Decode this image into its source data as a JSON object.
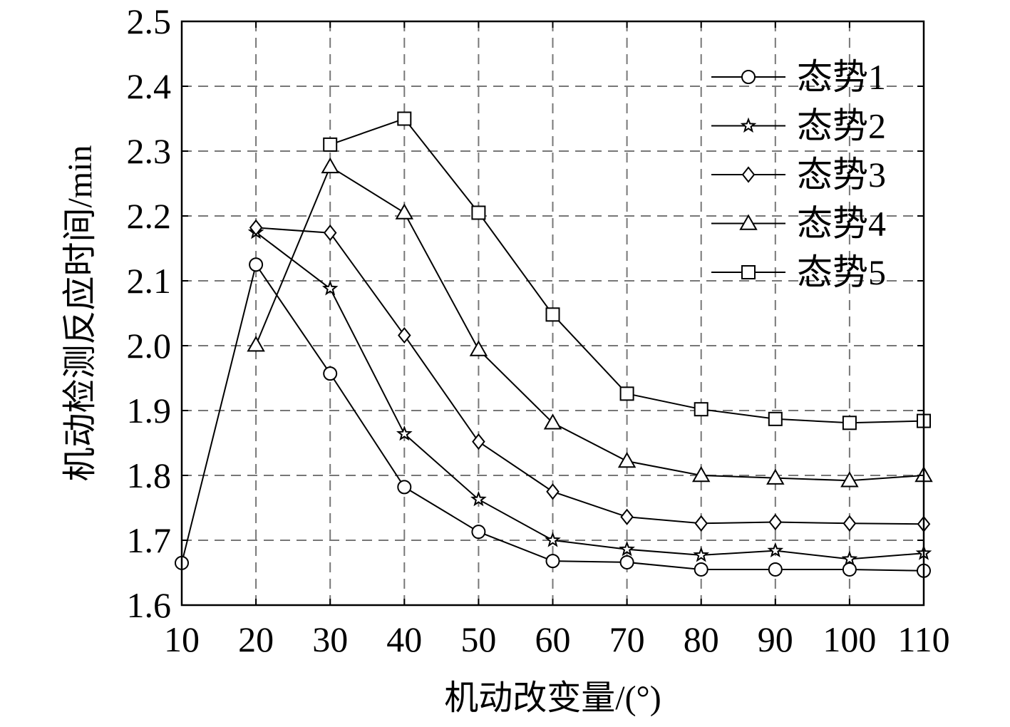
{
  "chart_data": {
    "type": "line",
    "xlabel": "机动改变量/(°)",
    "ylabel": "机动检测反应时间/min",
    "xlim": [
      10,
      110
    ],
    "ylim": [
      1.6,
      2.5
    ],
    "x_ticks": [
      "10",
      "20",
      "30",
      "40",
      "50",
      "60",
      "70",
      "80",
      "90",
      "100",
      "110"
    ],
    "y_ticks": [
      "1.6",
      "1.7",
      "1.8",
      "1.9",
      "2.0",
      "2.1",
      "2.2",
      "2.3",
      "2.4",
      "2.5"
    ],
    "grid": true,
    "grid_style": "dashed",
    "legend_position": "top-right",
    "line_color": "#000000",
    "series": [
      {
        "name": "态势1",
        "marker": "circle",
        "x": [
          10,
          20,
          30,
          40,
          50,
          60,
          70,
          80,
          90,
          100,
          110
        ],
        "values": [
          1.665,
          2.125,
          1.957,
          1.782,
          1.713,
          1.668,
          1.666,
          1.655,
          1.655,
          1.655,
          1.653
        ]
      },
      {
        "name": "态势2",
        "marker": "star",
        "x": [
          20,
          30,
          40,
          50,
          60,
          70,
          80,
          90,
          100,
          110
        ],
        "values": [
          2.175,
          2.088,
          1.864,
          1.763,
          1.7,
          1.686,
          1.677,
          1.684,
          1.671,
          1.68
        ]
      },
      {
        "name": "态势3",
        "marker": "diamond",
        "x": [
          20,
          30,
          40,
          50,
          60,
          70,
          80,
          90,
          100,
          110
        ],
        "values": [
          2.182,
          2.174,
          2.016,
          1.852,
          1.775,
          1.736,
          1.726,
          1.728,
          1.726,
          1.725
        ]
      },
      {
        "name": "态势4",
        "marker": "triangle",
        "x": [
          20,
          30,
          40,
          50,
          60,
          70,
          80,
          90,
          100,
          110
        ],
        "values": [
          2.001,
          2.276,
          2.205,
          1.994,
          1.881,
          1.822,
          1.8,
          1.796,
          1.792,
          1.8
        ]
      },
      {
        "name": "态势5",
        "marker": "square",
        "x": [
          30,
          40,
          50,
          60,
          70,
          80,
          90,
          100,
          110
        ],
        "values": [
          2.31,
          2.35,
          2.205,
          2.048,
          1.926,
          1.902,
          1.887,
          1.881,
          1.884
        ]
      }
    ]
  }
}
